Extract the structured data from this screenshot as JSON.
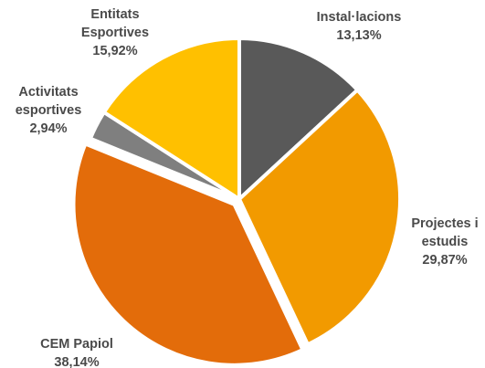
{
  "chart_data": {
    "type": "pie",
    "title": "",
    "slices": [
      {
        "label": [
          "Instal·lacions"
        ],
        "value_text": "13,13%",
        "value": 13.13,
        "color": "#595959"
      },
      {
        "label": [
          "Projectes i",
          "estudis"
        ],
        "value_text": "29,87%",
        "value": 29.87,
        "color": "#F29A00"
      },
      {
        "label": [
          "CEM Papiol"
        ],
        "value_text": "38,14%",
        "value": 38.14,
        "color": "#E36C0A"
      },
      {
        "label": [
          "Activitats",
          "esportives"
        ],
        "value_text": "2,94%",
        "value": 2.94,
        "color": "#7F7F7F"
      },
      {
        "label": [
          "Entitats",
          "Esportives"
        ],
        "value_text": "15,92%",
        "value": 15.92,
        "color": "#FFC000"
      }
    ],
    "start_angle_deg": 0,
    "direction": "clockwise",
    "exploded_slices": [
      "CEM Papiol"
    ],
    "legend": "none"
  }
}
